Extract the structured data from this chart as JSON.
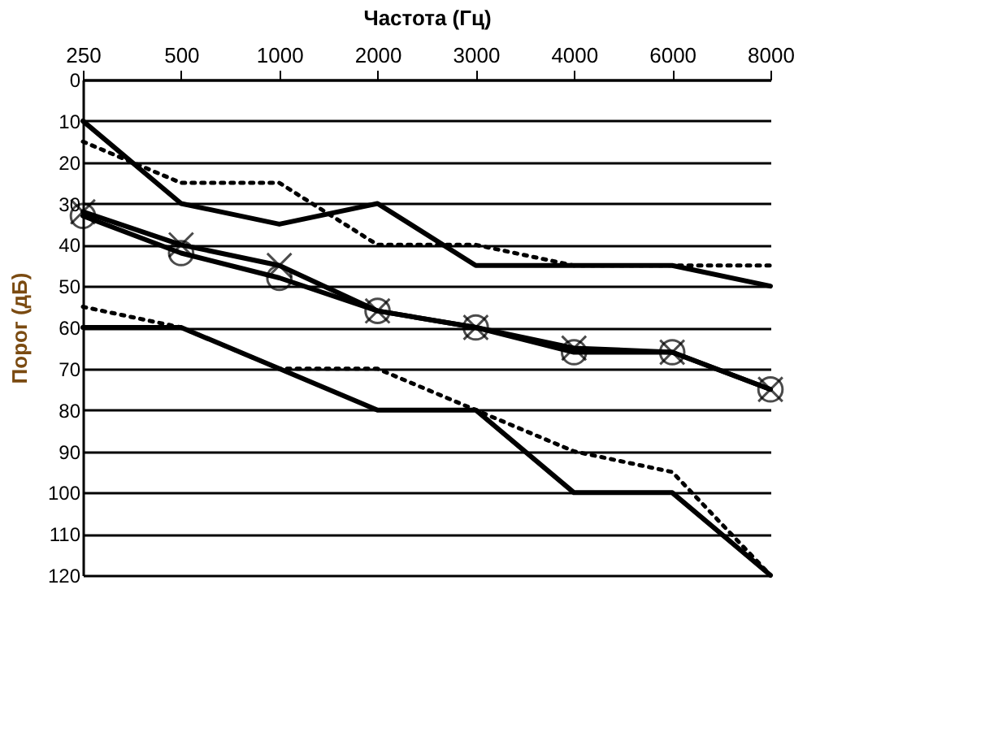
{
  "chart_data": {
    "type": "line",
    "xlabel": "Частота (Гц)",
    "ylabel": "Порог (дБ)",
    "categories": [
      "250",
      "500",
      "1000",
      "2000",
      "3000",
      "4000",
      "6000",
      "8000"
    ],
    "ylim": [
      120,
      0
    ],
    "yticks": [
      0,
      10,
      20,
      30,
      40,
      50,
      60,
      70,
      80,
      90,
      100,
      110,
      120
    ],
    "grid": "y",
    "series": [
      {
        "color": "#000000",
        "line_style": "solid",
        "marker": "none",
        "values": [
          10,
          30,
          35,
          30,
          45,
          45,
          45,
          50
        ]
      },
      {
        "color": "#000000",
        "line_style": "dotted",
        "marker": "none",
        "values": [
          15,
          25,
          25,
          40,
          40,
          45,
          45,
          45
        ]
      },
      {
        "color": "#000000",
        "line_style": "solid",
        "marker": "circle",
        "values": [
          33,
          42,
          48,
          56,
          60,
          66,
          66,
          75
        ]
      },
      {
        "color": "#000000",
        "line_style": "solid",
        "marker": "cross",
        "values": [
          32,
          40,
          45,
          56,
          60,
          65,
          66,
          75
        ]
      },
      {
        "color": "#000000",
        "line_style": "solid",
        "marker": "none",
        "values": [
          60,
          60,
          70,
          80,
          80,
          100,
          100,
          120
        ]
      },
      {
        "color": "#000000",
        "line_style": "dotted",
        "marker": "none",
        "values": [
          55,
          60,
          70,
          70,
          80,
          90,
          95,
          120
        ]
      }
    ]
  }
}
